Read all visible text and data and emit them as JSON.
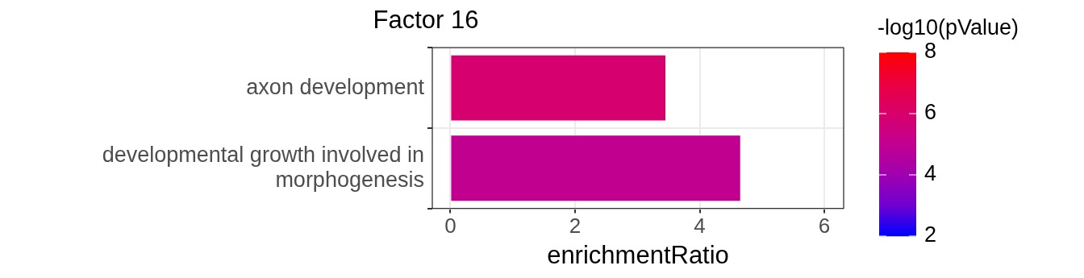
{
  "chart_data": {
    "type": "bar",
    "orientation": "horizontal",
    "title": "Factor 16",
    "xlabel": "enrichmentRatio",
    "clabel": "-log10(pValue)",
    "categories": [
      "axon development",
      "developmental growth involved in morphogenesis"
    ],
    "values": [
      3.45,
      4.65
    ],
    "cvalues": [
      5.9,
      5.0
    ],
    "clim": [
      2,
      8
    ],
    "cticks": [
      2,
      4,
      6,
      8
    ],
    "xlim": [
      -0.29,
      6.31
    ],
    "xticks": [
      0,
      2,
      4,
      6
    ],
    "grid": true,
    "legend": false
  }
}
